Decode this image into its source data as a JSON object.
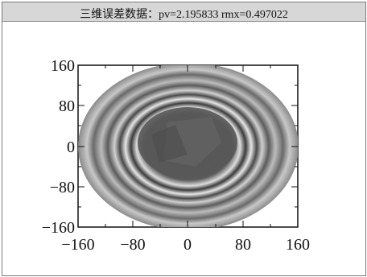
{
  "window": {
    "title": "三维误差数据：pv=2.195833   rmx=0.497022"
  },
  "plot": {
    "type": "heatmap",
    "x_ticks": [
      "−160",
      "−80",
      "0",
      "80",
      "160"
    ],
    "y_ticks": [
      "160",
      "80",
      "0",
      "−80",
      "−160"
    ],
    "x_range": [
      -160,
      160
    ],
    "y_range": [
      -160,
      160
    ],
    "grid": false,
    "colormap": "grayscale",
    "description_text": ""
  }
}
